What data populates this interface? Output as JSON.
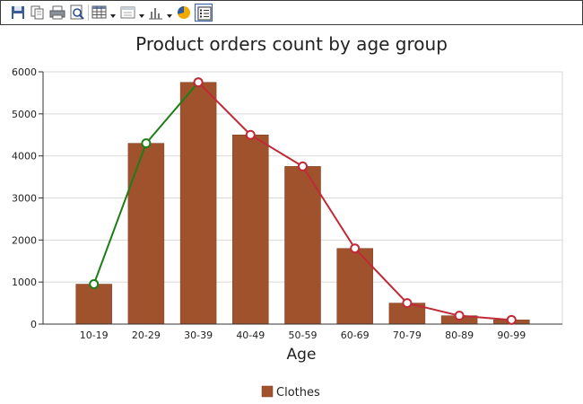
{
  "toolbar": {
    "buttons": [
      {
        "name": "save-icon",
        "active": false
      },
      {
        "name": "copy-icon",
        "active": false
      },
      {
        "name": "print-icon",
        "active": false
      },
      {
        "name": "print-preview-icon",
        "active": false
      },
      {
        "name": "data-grid-icon",
        "active": false,
        "dropdown": true
      },
      {
        "name": "view-options-icon",
        "active": false,
        "dropdown": true
      },
      {
        "name": "chart-type-icon",
        "active": false,
        "dropdown": true
      },
      {
        "name": "chart-color-icon",
        "active": false
      },
      {
        "name": "legend-toggle-icon",
        "active": true
      }
    ]
  },
  "chart_data": {
    "type": "bar",
    "title": "Product orders count by age group",
    "xlabel": "Age",
    "ylabel": "",
    "ylim": [
      0,
      6000
    ],
    "yticks": [
      0,
      1000,
      2000,
      3000,
      4000,
      5000,
      6000
    ],
    "grid": true,
    "legend_position": "bottom",
    "categories": [
      "10-19",
      "20-29",
      "30-39",
      "40-49",
      "50-59",
      "60-69",
      "70-79",
      "80-89",
      "90-99"
    ],
    "series": [
      {
        "name": "Clothes",
        "type": "bar",
        "color": "#a0522d",
        "values": [
          950,
          4300,
          5750,
          4500,
          3750,
          1800,
          500,
          200,
          100
        ]
      }
    ],
    "overlay_lines": [
      {
        "type": "line",
        "color": "#1e7d16",
        "marker_fill": "#ffffff",
        "x": [
          "10-19",
          "20-29",
          "30-39"
        ],
        "values": [
          950,
          4300,
          5750
        ]
      },
      {
        "type": "line",
        "color": "#c02a37",
        "marker_fill": "#ffffff",
        "x": [
          "30-39",
          "40-49",
          "50-59",
          "60-69",
          "70-79",
          "80-89",
          "90-99"
        ],
        "values": [
          5750,
          4500,
          3750,
          1800,
          500,
          200,
          100
        ]
      }
    ]
  }
}
